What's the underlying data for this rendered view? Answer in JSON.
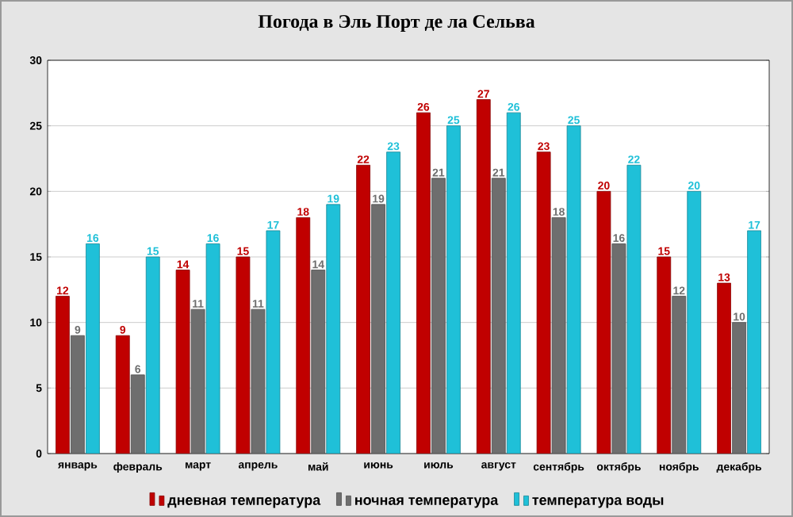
{
  "chart_data": {
    "type": "bar",
    "title": "Погода в Эль Порт де ла Сельва",
    "categories": [
      "январь",
      "февраль",
      "март",
      "апрель",
      "май",
      "июнь",
      "июль",
      "август",
      "сентябрь",
      "октябрь",
      "ноябрь",
      "декабрь"
    ],
    "series": [
      {
        "name": "дневная температура",
        "color": "#c00000",
        "values": [
          12,
          9,
          14,
          15,
          18,
          22,
          26,
          27,
          23,
          20,
          15,
          13
        ]
      },
      {
        "name": "ночная температура",
        "color": "#6e6e6e",
        "values": [
          9,
          6,
          11,
          11,
          14,
          19,
          21,
          21,
          18,
          16,
          12,
          10
        ]
      },
      {
        "name": "температура воды",
        "color": "#1fc0d8",
        "values": [
          16,
          15,
          16,
          17,
          19,
          23,
          25,
          26,
          25,
          22,
          20,
          17
        ]
      }
    ],
    "ylim": [
      0,
      30
    ],
    "yticks": [
      0,
      5,
      10,
      15,
      20,
      25,
      30
    ],
    "grid": "y",
    "legend": "bottom",
    "data_labels": true
  }
}
